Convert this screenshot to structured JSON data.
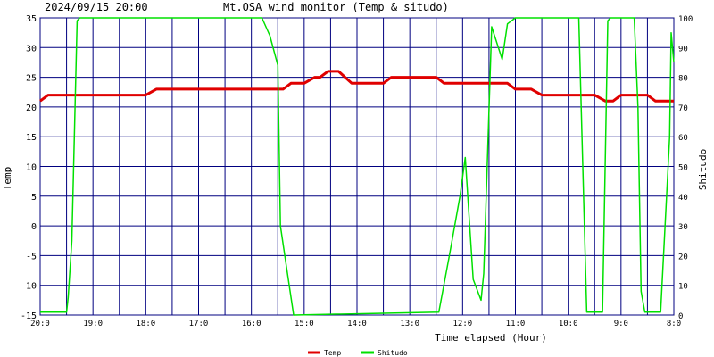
{
  "header": {
    "datetime": "2024/09/15 20:00",
    "title": "Mt.OSA wind monitor (Temp & situdo)"
  },
  "chart_data": {
    "type": "line",
    "title": "Mt.OSA wind monitor (Temp & situdo)",
    "xlabel": "Time elapsed (Hour)",
    "ylabel_left": "Temp",
    "ylabel_right": "Shitudo",
    "x_ticks": [
      "20:0",
      "19:0",
      "18:0",
      "17:0",
      "16:0",
      "15:0",
      "14:0",
      "13:0",
      "12:0",
      "11:0",
      "10:0",
      "9:0",
      "8:0"
    ],
    "xlim_hours": [
      0,
      12
    ],
    "ylim_left": [
      -15,
      35
    ],
    "ylim_right": [
      0,
      100
    ],
    "y_ticks_left": [
      35,
      30,
      25,
      20,
      15,
      10,
      5,
      0,
      -5,
      -10,
      -15
    ],
    "y_ticks_right": [
      100,
      90,
      80,
      70,
      60,
      50,
      40,
      30,
      20,
      10,
      0
    ],
    "grid": true,
    "legend_position": "bottom-center",
    "series": [
      {
        "name": "Temp",
        "axis": "left",
        "color": "#e00000",
        "points": [
          [
            0,
            21
          ],
          [
            0.15,
            22
          ],
          [
            2,
            22
          ],
          [
            2.2,
            23
          ],
          [
            4.5,
            23
          ],
          [
            4.6,
            23
          ],
          [
            4.75,
            24
          ],
          [
            5,
            24
          ],
          [
            5.2,
            25
          ],
          [
            5.3,
            25
          ],
          [
            5.45,
            26
          ],
          [
            5.65,
            26
          ],
          [
            5.9,
            24
          ],
          [
            6.5,
            24
          ],
          [
            6.65,
            25
          ],
          [
            7.5,
            25
          ],
          [
            7.65,
            24
          ],
          [
            8.85,
            24
          ],
          [
            9,
            23
          ],
          [
            9.3,
            23
          ],
          [
            9.5,
            22
          ],
          [
            10.5,
            22
          ],
          [
            10.7,
            21
          ],
          [
            10.85,
            21
          ],
          [
            11,
            22
          ],
          [
            11.5,
            22
          ],
          [
            11.65,
            21
          ],
          [
            12,
            21
          ]
        ]
      },
      {
        "name": "Shitudo",
        "axis": "right",
        "color": "#00e000",
        "points": [
          [
            0,
            1
          ],
          [
            0.5,
            1
          ],
          [
            0.53,
            6
          ],
          [
            0.6,
            25
          ],
          [
            0.7,
            99
          ],
          [
            0.75,
            100
          ],
          [
            4.2,
            100
          ],
          [
            4.35,
            94
          ],
          [
            4.5,
            84
          ],
          [
            4.55,
            30
          ],
          [
            4.65,
            18
          ],
          [
            4.8,
            0
          ],
          [
            7.55,
            1
          ],
          [
            7.75,
            20
          ],
          [
            7.95,
            40
          ],
          [
            8.05,
            53
          ],
          [
            8.2,
            12
          ],
          [
            8.35,
            5
          ],
          [
            8.4,
            14
          ],
          [
            8.55,
            97
          ],
          [
            8.75,
            86
          ],
          [
            8.85,
            98
          ],
          [
            9,
            100
          ],
          [
            10.2,
            100
          ],
          [
            10.35,
            1
          ],
          [
            10.65,
            1
          ],
          [
            10.75,
            99
          ],
          [
            10.8,
            100
          ],
          [
            11.25,
            100
          ],
          [
            11.32,
            70
          ],
          [
            11.38,
            8
          ],
          [
            11.45,
            1
          ],
          [
            11.75,
            1
          ],
          [
            11.92,
            60
          ],
          [
            11.95,
            95
          ],
          [
            12,
            85
          ]
        ]
      }
    ]
  }
}
